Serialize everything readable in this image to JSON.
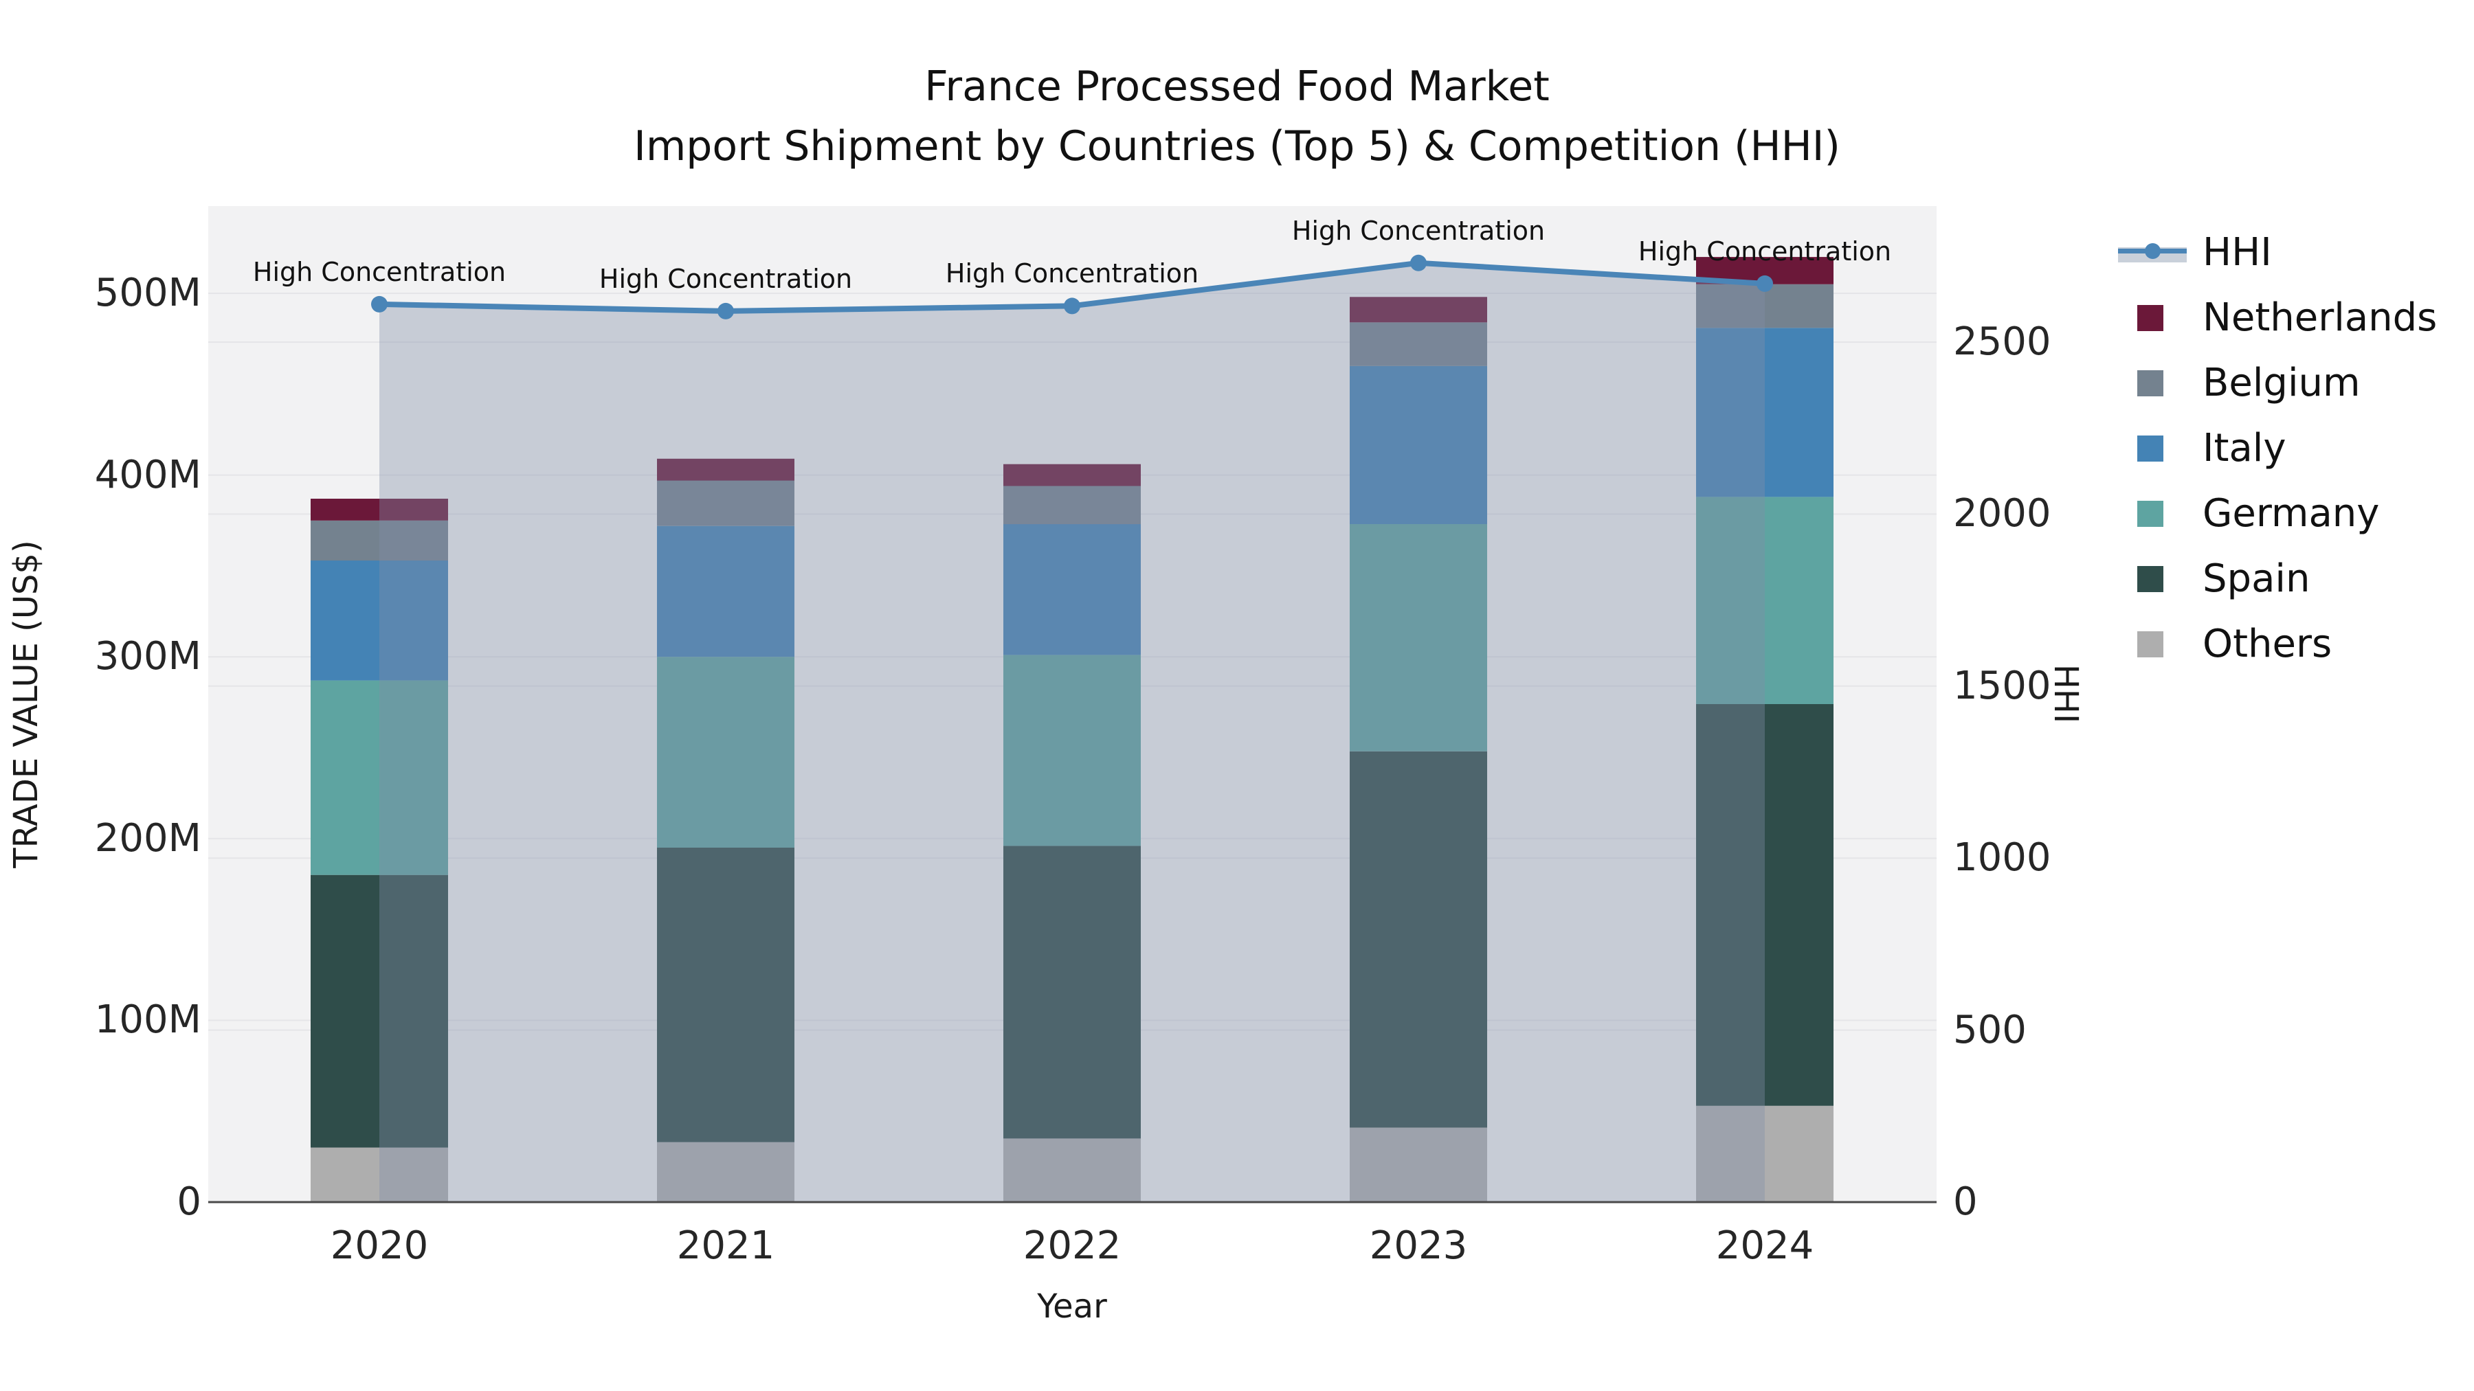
{
  "title": {
    "line1": "France Processed Food Market",
    "line2": "Import Shipment by Countries (Top 5) & Competition (HHI)"
  },
  "axes": {
    "x": {
      "title": "Year",
      "tick_labels": [
        "2020",
        "2021",
        "2022",
        "2023",
        "2024"
      ]
    },
    "y_left": {
      "title": "TRADE VALUE (US$)",
      "tick_labels": [
        "0",
        "100M",
        "200M",
        "300M",
        "400M",
        "500M"
      ],
      "tick_values": [
        0,
        100,
        200,
        300,
        400,
        500
      ],
      "max": 500,
      "unit": "millions of US$"
    },
    "y_right": {
      "title": "HHI",
      "tick_labels": [
        "0",
        "500",
        "1000",
        "1500",
        "2000",
        "2500"
      ],
      "tick_values": [
        0,
        500,
        1000,
        1500,
        2000,
        2500
      ],
      "max": 2500
    }
  },
  "colors": {
    "plot_bg": "#F2F2F3",
    "grid": "#E5E5E8",
    "spine": "#4A4A4A",
    "hhi_line": "#4A85B7",
    "hhi_fill": "rgba(129,142,167,0.38)",
    "legend_band": "#C9D0DA",
    "netherlands": "#6B1839",
    "belgium": "#74828F",
    "italy": "#4483B5",
    "germany": "#5EA4A1",
    "spain": "#2F4D4A",
    "others": "#AEAEAE"
  },
  "legend": {
    "items": [
      {
        "label": "HHI",
        "type": "line",
        "color": "#4A85B7",
        "band_color": "#C9D0DA"
      },
      {
        "label": "Netherlands",
        "type": "swatch",
        "color": "#6B1839"
      },
      {
        "label": "Belgium",
        "type": "swatch",
        "color": "#74828F"
      },
      {
        "label": "Italy",
        "type": "swatch",
        "color": "#4483B5"
      },
      {
        "label": "Germany",
        "type": "swatch",
        "color": "#5EA4A1"
      },
      {
        "label": "Spain",
        "type": "swatch",
        "color": "#2F4D4A"
      },
      {
        "label": "Others",
        "type": "swatch",
        "color": "#AEAEAE"
      }
    ]
  },
  "chart_data": {
    "type": "combo: stacked bar (left axis) + line with area fill (right axis)",
    "title": "France Processed Food Market — Import Shipment by Countries (Top 5) & Competition (HHI)",
    "categories": [
      "2020",
      "2021",
      "2022",
      "2023",
      "2024"
    ],
    "bar_unit": "millions US$ trade value",
    "stack_order": "bottom to top",
    "series": [
      {
        "name": "Others",
        "color": "#AEAEAE",
        "values": [
          30,
          33,
          35,
          41,
          53
        ]
      },
      {
        "name": "Spain",
        "color": "#2F4D4A",
        "values": [
          150,
          162,
          161,
          207,
          221
        ]
      },
      {
        "name": "Germany",
        "color": "#5EA4A1",
        "values": [
          107,
          105,
          105,
          125,
          114
        ]
      },
      {
        "name": "Italy",
        "color": "#4483B5",
        "values": [
          66,
          72,
          72,
          87,
          93
        ]
      },
      {
        "name": "Belgium",
        "color": "#74828F",
        "values": [
          22,
          25,
          21,
          24,
          24
        ]
      },
      {
        "name": "Netherlands",
        "color": "#6B1839",
        "values": [
          12,
          12,
          12,
          14,
          15
        ]
      }
    ],
    "bar_totals": [
      387,
      409,
      406,
      498,
      520
    ],
    "line": {
      "name": "HHI",
      "axis": "right",
      "color": "#4A85B7",
      "fill_color": "rgba(129,142,167,0.38)",
      "values": [
        2610,
        2590,
        2605,
        2730,
        2670
      ]
    },
    "annotations": [
      {
        "category": "2020",
        "text": "High Concentration"
      },
      {
        "category": "2021",
        "text": "High Concentration"
      },
      {
        "category": "2022",
        "text": "High Concentration"
      },
      {
        "category": "2023",
        "text": "High Concentration"
      },
      {
        "category": "2024",
        "text": "High Concentration"
      }
    ],
    "layout_hints": {
      "grid": true,
      "legend_position": "right, outside plot",
      "y_left_range": [
        0,
        560
      ],
      "y_right_range": [
        0,
        2800
      ]
    }
  }
}
